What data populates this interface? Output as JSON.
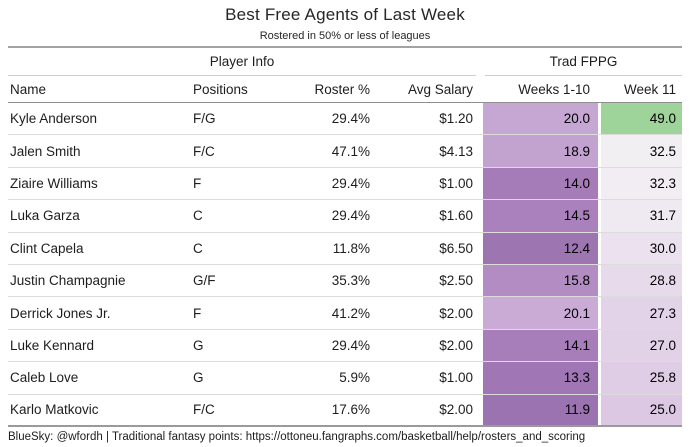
{
  "title": "Best Free Agents of Last Week",
  "subtitle": "Rostered in 50% or less of leagues",
  "table": {
    "spanner_player_info": "Player Info",
    "spanner_trad_fppg": "Trad FPPG",
    "headers": {
      "name": "Name",
      "positions": "Positions",
      "roster_pct": "Roster %",
      "avg_salary": "Avg Salary",
      "weeks_1_10": "Weeks 1-10",
      "week_11": "Week 11"
    },
    "rows": [
      {
        "name": "Kyle Anderson",
        "positions": "F/G",
        "roster_pct": "29.4%",
        "avg_salary": "$1.20",
        "weeks_1_10": "20.0",
        "week_11": "49.0",
        "weeks_1_10_color": "#c6a7d3",
        "week_11_color": "#9ed49a"
      },
      {
        "name": "Jalen Smith",
        "positions": "F/C",
        "roster_pct": "47.1%",
        "avg_salary": "$4.13",
        "weeks_1_10": "18.9",
        "week_11": "32.5",
        "weeks_1_10_color": "#c2a3d0",
        "week_11_color": "#f2eff3"
      },
      {
        "name": "Ziaire Williams",
        "positions": "F",
        "roster_pct": "29.4%",
        "avg_salary": "$1.00",
        "weeks_1_10": "14.0",
        "week_11": "32.3",
        "weeks_1_10_color": "#a57cb8",
        "week_11_color": "#f1edf2"
      },
      {
        "name": "Luka Garza",
        "positions": "C",
        "roster_pct": "29.4%",
        "avg_salary": "$1.60",
        "weeks_1_10": "14.5",
        "week_11": "31.7",
        "weeks_1_10_color": "#aa81bd",
        "week_11_color": "#efe9f1"
      },
      {
        "name": "Clint Capela",
        "positions": "C",
        "roster_pct": "11.8%",
        "avg_salary": "$6.50",
        "weeks_1_10": "12.4",
        "week_11": "30.0",
        "weeks_1_10_color": "#9c75b1",
        "week_11_color": "#ece2ef"
      },
      {
        "name": "Justin Champagnie",
        "positions": "G/F",
        "roster_pct": "35.3%",
        "avg_salary": "$2.50",
        "weeks_1_10": "15.8",
        "week_11": "28.8",
        "weeks_1_10_color": "#b28cc3",
        "week_11_color": "#e7daeb"
      },
      {
        "name": "Derrick Jones Jr.",
        "positions": "F",
        "roster_pct": "41.2%",
        "avg_salary": "$2.00",
        "weeks_1_10": "20.1",
        "week_11": "27.3",
        "weeks_1_10_color": "#c9abd6",
        "week_11_color": "#e3d3e8"
      },
      {
        "name": "Luke Kennard",
        "positions": "G",
        "roster_pct": "29.4%",
        "avg_salary": "$2.00",
        "weeks_1_10": "14.1",
        "week_11": "27.0",
        "weeks_1_10_color": "#a77eba",
        "week_11_color": "#e2d2e8"
      },
      {
        "name": "Caleb Love",
        "positions": "G",
        "roster_pct": "5.9%",
        "avg_salary": "$1.00",
        "weeks_1_10": "13.3",
        "week_11": "25.8",
        "weeks_1_10_color": "#a076b4",
        "week_11_color": "#dfcce5"
      },
      {
        "name": "Karlo Matkovic",
        "positions": "F/C",
        "roster_pct": "17.6%",
        "avg_salary": "$2.00",
        "weeks_1_10": "11.9",
        "week_11": "25.0",
        "weeks_1_10_color": "#9a73b0",
        "week_11_color": "#dcc8e3"
      }
    ]
  },
  "footer": "BlueSky: @wfordh | Traditional fantasy points: https://ottoneu.fangraphs.com/basketball/help/rosters_and_scoring",
  "colors": {
    "background": "#ffffff",
    "text": "#1d1d1d",
    "top_border": "#a3a3a3",
    "spanner_underline": "#cfcfcf",
    "header_underline": "#8f8f8f",
    "row_divider": "#dcdcdc",
    "bottom_border": "#9a9a9a",
    "fppg_low_purple": "#9a73b0",
    "fppg_high_green": "#9ed49a"
  },
  "chart_data": {
    "type": "table",
    "title": "Best Free Agents of Last Week",
    "subtitle": "Rostered in 50% or less of leagues",
    "column_groups": [
      {
        "label": "Player Info",
        "columns": [
          "Name",
          "Positions",
          "Roster %",
          "Avg Salary"
        ]
      },
      {
        "label": "Trad FPPG",
        "columns": [
          "Weeks 1-10",
          "Week 11"
        ]
      }
    ],
    "columns": [
      "Name",
      "Positions",
      "Roster %",
      "Avg Salary",
      "Weeks 1-10",
      "Week 11"
    ],
    "rows": [
      [
        "Kyle Anderson",
        "F/G",
        29.4,
        1.2,
        20.0,
        49.0
      ],
      [
        "Jalen Smith",
        "F/C",
        47.1,
        4.13,
        18.9,
        32.5
      ],
      [
        "Ziaire Williams",
        "F",
        29.4,
        1.0,
        14.0,
        32.3
      ],
      [
        "Luka Garza",
        "C",
        29.4,
        1.6,
        14.5,
        31.7
      ],
      [
        "Clint Capela",
        "C",
        11.8,
        6.5,
        12.4,
        30.0
      ],
      [
        "Justin Champagnie",
        "G/F",
        35.3,
        2.5,
        15.8,
        28.8
      ],
      [
        "Derrick Jones Jr.",
        "F",
        41.2,
        2.0,
        20.1,
        27.3
      ],
      [
        "Luke Kennard",
        "G",
        29.4,
        2.0,
        14.1,
        27.0
      ],
      [
        "Caleb Love",
        "G",
        5.9,
        1.0,
        13.3,
        25.8
      ],
      [
        "Karlo Matkovic",
        "F/C",
        17.6,
        2.0,
        11.9,
        25.0
      ]
    ],
    "notes": "Roster % in percent; Avg Salary in dollars. FPPG cells shaded on a diverging scale: low values dark purple, high values green (49.0 is green, ~32.5 near white).",
    "footer": "BlueSky: @wfordh | Traditional fantasy points: https://ottoneu.fangraphs.com/basketball/help/rosters_and_scoring"
  }
}
